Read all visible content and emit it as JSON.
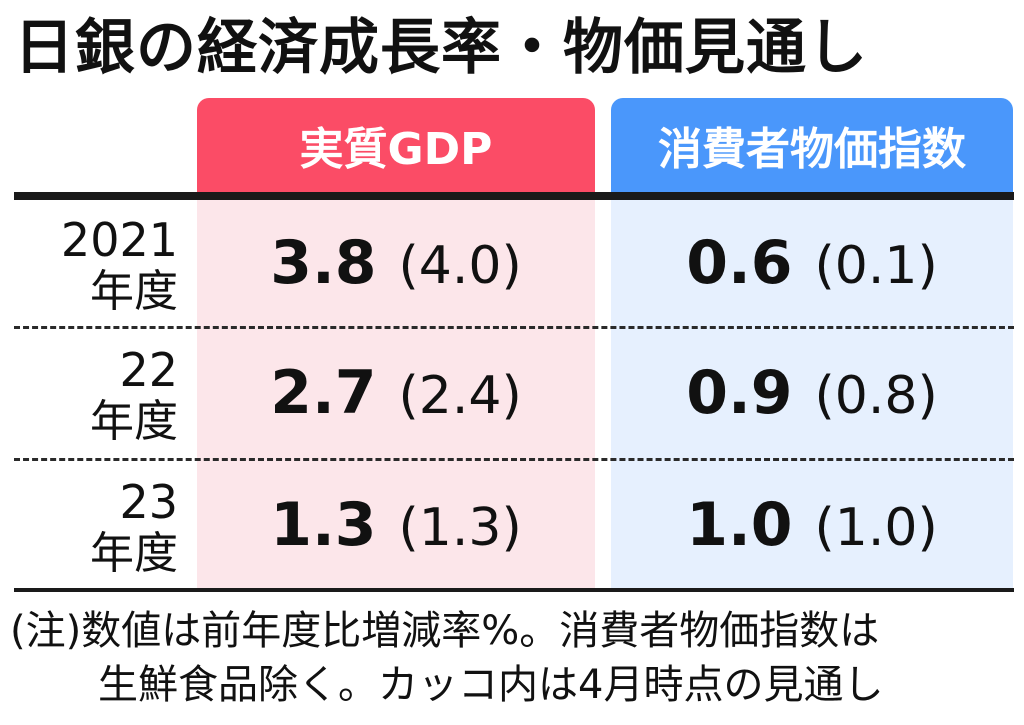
{
  "title": "日銀の経済成長率・物価見通し",
  "chart_data": {
    "type": "table",
    "columns": [
      "実質GDP",
      "消費者物価指数"
    ],
    "rows": [
      {
        "year": "2021",
        "unit": "年度",
        "gdp": "3.8",
        "gdp_prev": "(4.0)",
        "cpi": "0.6",
        "cpi_prev": "(0.1)"
      },
      {
        "year": "22",
        "unit": "年度",
        "gdp": "2.7",
        "gdp_prev": "(2.4)",
        "cpi": "0.9",
        "cpi_prev": "(0.8)"
      },
      {
        "year": "23",
        "unit": "年度",
        "gdp": "1.3",
        "gdp_prev": "(1.3)",
        "cpi": "1.0",
        "cpi_prev": "(1.0)"
      }
    ],
    "colors": {
      "gdp_header": "#fb4c66",
      "gdp_body": "#fce6ea",
      "cpi_header": "#4a97fb",
      "cpi_body": "#e6f0fe"
    }
  },
  "note": {
    "line1": "(注)数値は前年度比増減率%。消費者物価指数は",
    "line2": "生鮮食品除く。カッコ内は4月時点の見通し"
  }
}
